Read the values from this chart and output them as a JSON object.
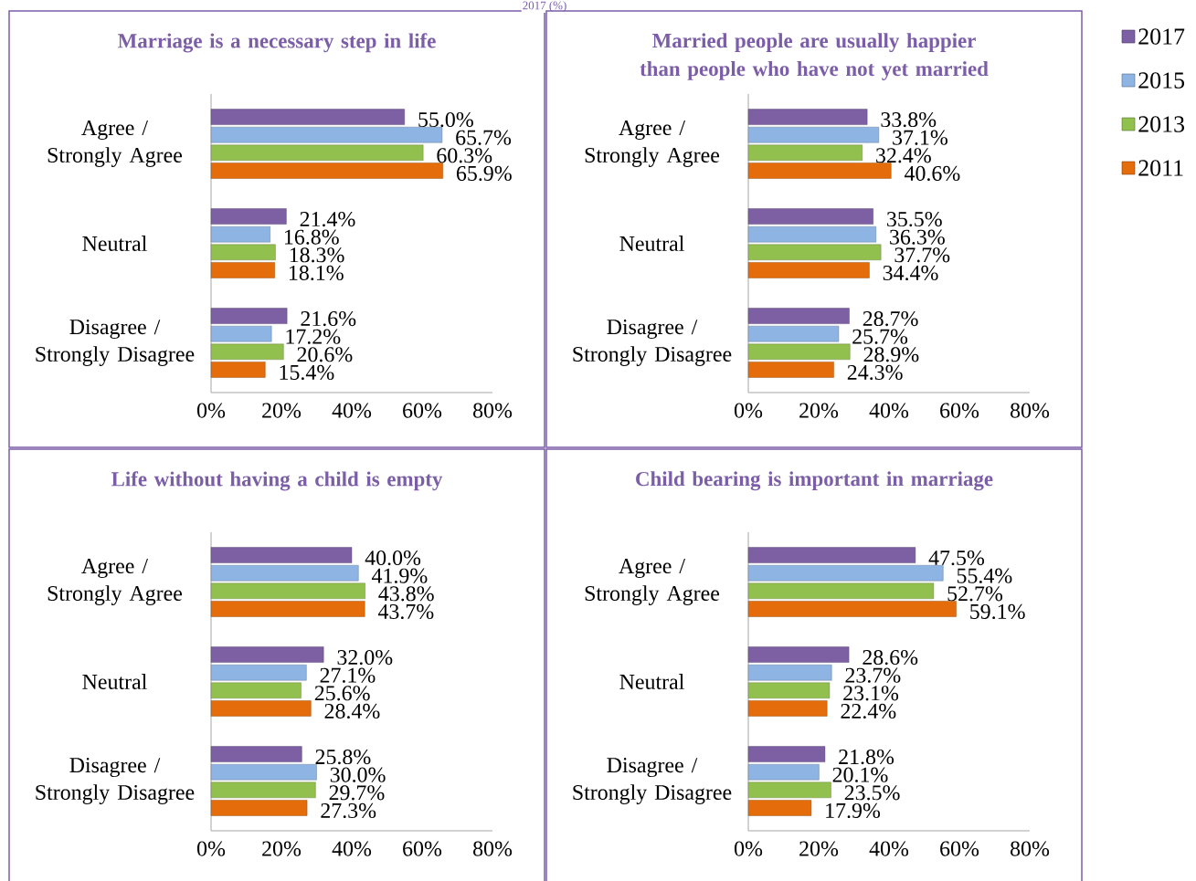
{
  "chart_data": [
    {
      "type": "bar",
      "orientation": "horizontal",
      "title": "Marriage is a necessary step in life",
      "annotations": [
        "2017 (%)"
      ],
      "legend": "right",
      "categories": [
        "Agree / Strongly Agree",
        "Neutral",
        "Disagree / Strongly Disagree"
      ],
      "xlim": [
        0,
        80
      ],
      "xticks": [
        {
          "value": 0,
          "label": "0%"
        },
        {
          "value": 20,
          "label": "20%"
        },
        {
          "value": 40,
          "label": "40%"
        },
        {
          "value": 60,
          "label": "60%"
        },
        {
          "value": 80,
          "label": "80%"
        }
      ],
      "series": [
        {
          "name": "2017",
          "color": "#7d5fa3",
          "values": [
            55.0,
            21.4,
            21.6
          ],
          "value_labels": [
            "55.0%",
            "21.4%",
            "21.6%"
          ]
        },
        {
          "name": "2015",
          "color": "#8eb4e3",
          "values": [
            65.7,
            16.8,
            17.2
          ],
          "value_labels": [
            "65.7%",
            "16.8%",
            "17.2%"
          ]
        },
        {
          "name": "2013",
          "color": "#92c04f",
          "values": [
            60.3,
            18.3,
            20.6
          ],
          "value_labels": [
            "60.3%",
            "18.3%",
            "20.6%"
          ]
        },
        {
          "name": "2011",
          "color": "#e46c0a",
          "values": [
            65.9,
            18.1,
            15.4
          ],
          "value_labels": [
            "65.9%",
            "18.1%",
            "15.4%"
          ]
        }
      ]
    },
    {
      "type": "bar",
      "orientation": "horizontal",
      "title": "Married people are usually happier than people who have not yet married",
      "categories": [
        "Agree / Strongly Agree",
        "Neutral",
        "Disagree / Strongly Disagree"
      ],
      "xlim": [
        0,
        80
      ],
      "xticks": [
        {
          "value": 0,
          "label": "0%"
        },
        {
          "value": 20,
          "label": "20%"
        },
        {
          "value": 40,
          "label": "40%"
        },
        {
          "value": 60,
          "label": "60%"
        },
        {
          "value": 80,
          "label": "80%"
        }
      ],
      "series": [
        {
          "color": "#7d5fa3",
          "values": [
            33.8,
            35.5,
            28.7
          ],
          "value_labels": [
            "33.8%",
            "35.5%",
            "28.7%"
          ]
        },
        {
          "color": "#8eb4e3",
          "values": [
            37.1,
            36.3,
            25.7
          ],
          "value_labels": [
            "37.1%",
            "36.3%",
            "25.7%"
          ]
        },
        {
          "color": "#92c04f",
          "values": [
            32.4,
            37.7,
            28.9
          ],
          "value_labels": [
            "32.4%",
            "37.7%",
            "28.9%"
          ]
        },
        {
          "color": "#e46c0a",
          "values": [
            40.6,
            34.4,
            24.3
          ],
          "value_labels": [
            "40.6%",
            "34.4%",
            "24.3%"
          ]
        }
      ]
    },
    {
      "type": "bar",
      "orientation": "horizontal",
      "title": "Life without having a child is empty",
      "categories": [
        "Agree / Strongly Agree",
        "Neutral",
        "Disagree / Strongly Disagree"
      ],
      "xlim": [
        0,
        80
      ],
      "xticks": [
        {
          "value": 0,
          "label": "0%"
        },
        {
          "value": 20,
          "label": "20%"
        },
        {
          "value": 40,
          "label": "40%"
        },
        {
          "value": 60,
          "label": "60%"
        },
        {
          "value": 80,
          "label": "80%"
        }
      ],
      "series": [
        {
          "color": "#7d5fa3",
          "values": [
            40.0,
            32.0,
            25.8
          ],
          "value_labels": [
            "40.0%",
            "32.0%",
            "25.8%"
          ]
        },
        {
          "color": "#8eb4e3",
          "values": [
            41.9,
            27.1,
            30.0
          ],
          "value_labels": [
            "41.9%",
            "27.1%",
            "30.0%"
          ]
        },
        {
          "color": "#92c04f",
          "values": [
            43.8,
            25.6,
            29.7
          ],
          "value_labels": [
            "43.8%",
            "25.6%",
            "29.7%"
          ]
        },
        {
          "color": "#e46c0a",
          "values": [
            43.7,
            28.4,
            27.3
          ],
          "value_labels": [
            "43.7%",
            "28.4%",
            "27.3%"
          ]
        }
      ]
    },
    {
      "type": "bar",
      "orientation": "horizontal",
      "title": "Child bearing is important in marriage",
      "categories": [
        "Agree / Strongly Agree",
        "Neutral",
        "Disagree / Strongly Disagree"
      ],
      "xlim": [
        0,
        80
      ],
      "xticks": [
        {
          "value": 0,
          "label": "0%"
        },
        {
          "value": 20,
          "label": "20%"
        },
        {
          "value": 40,
          "label": "40%"
        },
        {
          "value": 60,
          "label": "60%"
        },
        {
          "value": 80,
          "label": "80%"
        }
      ],
      "series": [
        {
          "color": "#7d5fa3",
          "values": [
            47.5,
            28.6,
            21.8
          ],
          "value_labels": [
            "47.5%",
            "28.6%",
            "21.8%"
          ]
        },
        {
          "color": "#8eb4e3",
          "values": [
            55.4,
            23.7,
            20.1
          ],
          "value_labels": [
            "55.4%",
            "23.7%",
            "20.1%"
          ]
        },
        {
          "color": "#92c04f",
          "values": [
            52.7,
            23.1,
            23.5
          ],
          "value_labels": [
            "52.7%",
            "23.1%",
            "23.5%"
          ]
        },
        {
          "color": "#e46c0a",
          "values": [
            59.1,
            22.4,
            17.9
          ],
          "value_labels": [
            "59.1%",
            "22.4%",
            "17.9%"
          ]
        }
      ]
    }
  ]
}
